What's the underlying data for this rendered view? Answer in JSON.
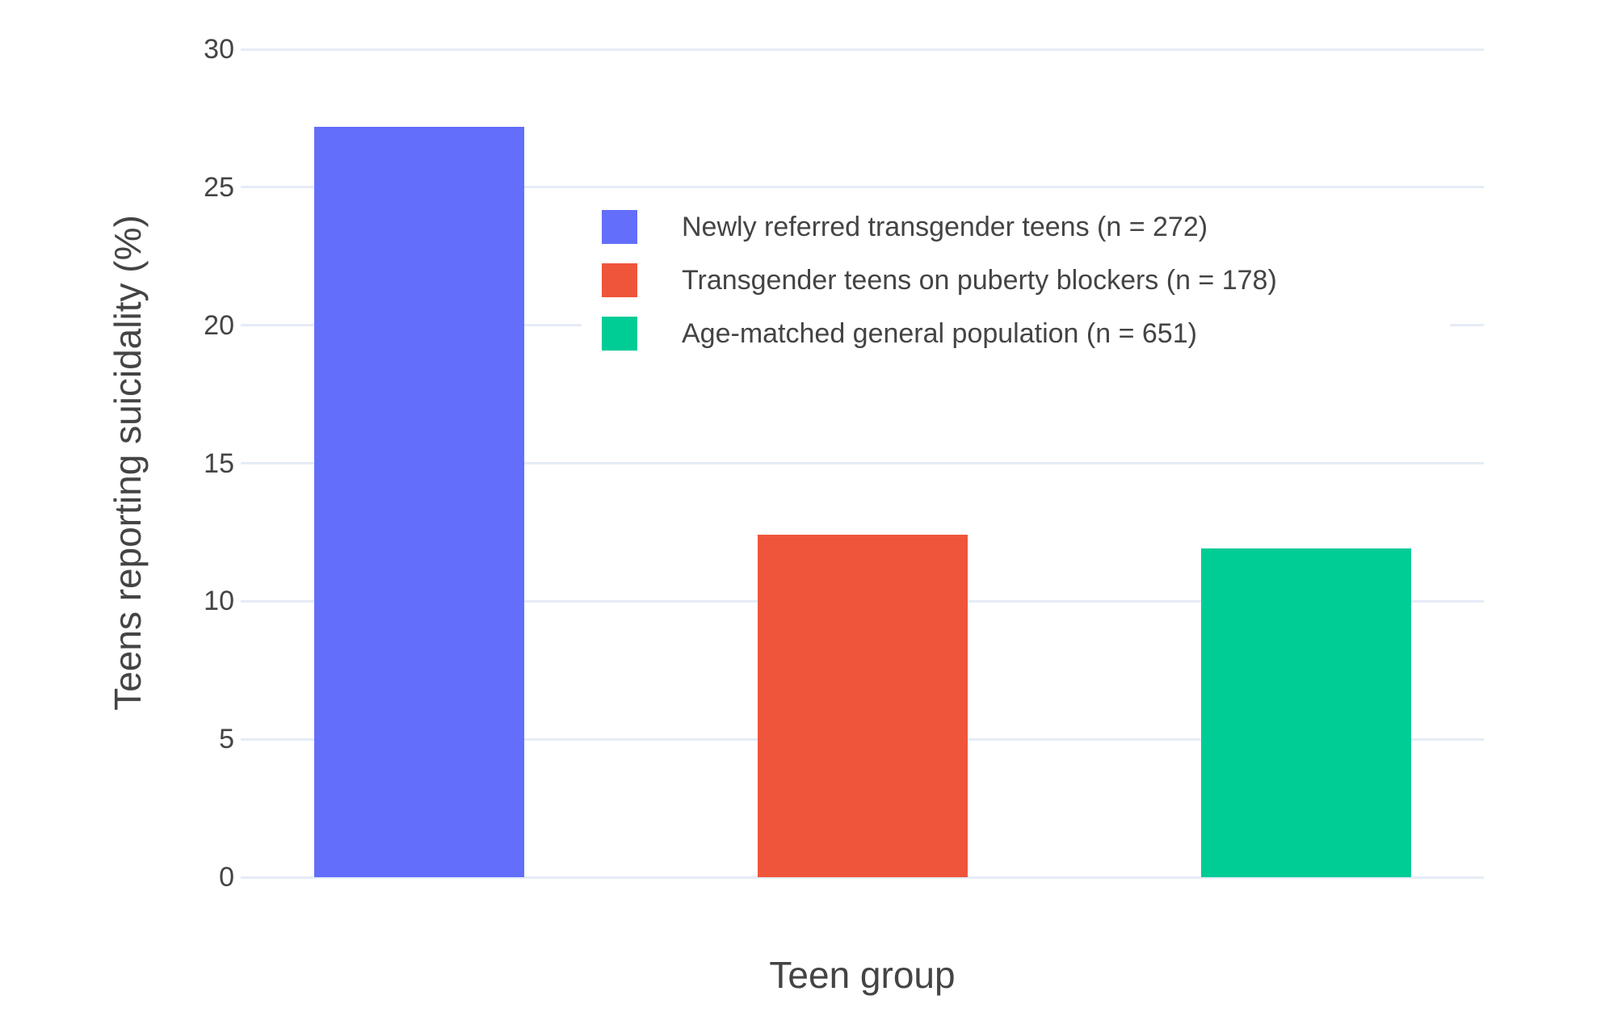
{
  "colors": {
    "background": "#FFFFFF",
    "grid": "#E5ECF6",
    "text": "#444444"
  },
  "chart_data": {
    "type": "bar",
    "title": "",
    "xlabel": "Teen group",
    "ylabel": "Teens reporting suicidality (%)",
    "ylim": [
      0,
      30
    ],
    "yticks": [
      0,
      5,
      10,
      15,
      20,
      25,
      30
    ],
    "grid": true,
    "legend_position": "inside top-center",
    "series": [
      {
        "name": "Newly referred transgender teens (n = 272)",
        "value": 27.2,
        "color": "#636EFA"
      },
      {
        "name": "Transgender teens on puberty blockers (n = 178)",
        "value": 12.4,
        "color": "#EF553B"
      },
      {
        "name": "Age-matched general population (n = 651)",
        "value": 11.9,
        "color": "#00CC96"
      }
    ]
  }
}
